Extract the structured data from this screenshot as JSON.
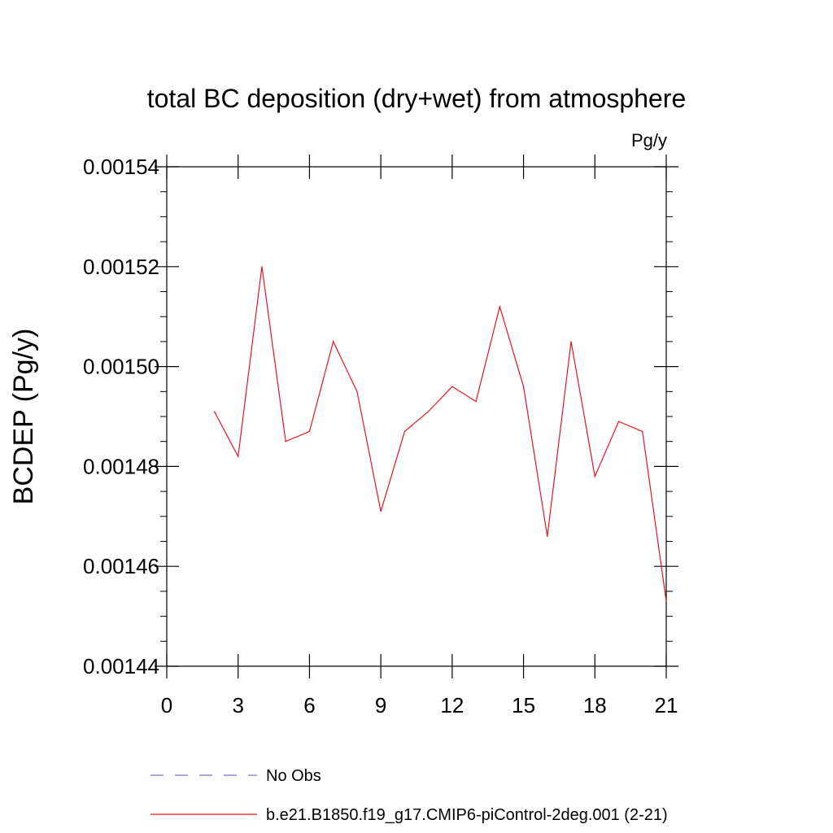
{
  "chart_data": {
    "type": "line",
    "title": "total BC deposition (dry+wet) from atmosphere",
    "units": "Pg/y",
    "ylabel": "BCDEP  (Pg/y)",
    "xlabel": "",
    "xlim": [
      0,
      21
    ],
    "ylim": [
      0.00144,
      0.00154
    ],
    "x_ticks": [
      0,
      3,
      6,
      9,
      12,
      15,
      18,
      21
    ],
    "y_ticks": [
      0.00144,
      0.00146,
      0.00148,
      0.0015,
      0.00152,
      0.00154
    ],
    "y_tick_labels": [
      "0.00144",
      "0.00146",
      "0.00148",
      "0.00150",
      "0.00152",
      "0.00154"
    ],
    "series": [
      {
        "name": "b.e21.B1850.f19_g17.CMIP6-piControl-2deg.001 (2-21)",
        "color": "#e8141c",
        "style": "solid",
        "x": [
          2,
          3,
          4,
          5,
          6,
          7,
          8,
          9,
          10,
          11,
          12,
          13,
          14,
          15,
          16,
          17,
          18,
          19,
          20,
          21
        ],
        "y": [
          0.001491,
          0.001482,
          0.00152,
          0.001485,
          0.001487,
          0.001505,
          0.001495,
          0.001471,
          0.001487,
          0.001491,
          0.001496,
          0.001493,
          0.001512,
          0.001496,
          0.001466,
          0.001505,
          0.001478,
          0.001489,
          0.001487,
          0.001453
        ]
      }
    ],
    "legend": {
      "placement": "bottom",
      "entries": [
        {
          "label": "No Obs",
          "color": "#7b72c8",
          "style": "dashed"
        },
        {
          "label": "b.e21.B1850.f19_g17.CMIP6-piControl-2deg.001 (2-21)",
          "color": "#e8141c",
          "style": "solid"
        }
      ]
    }
  }
}
